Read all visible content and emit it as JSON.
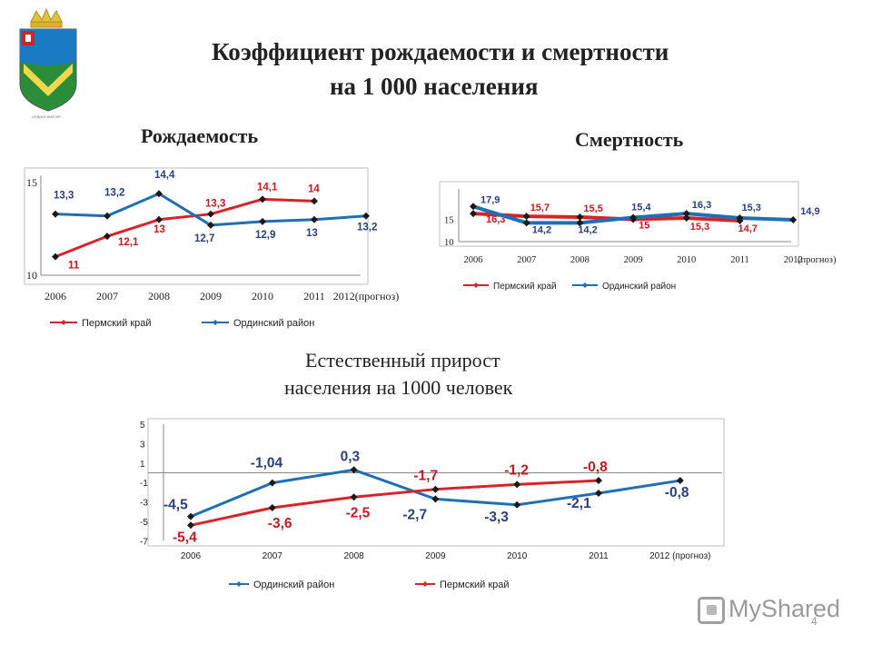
{
  "slide": {
    "title_line1": "Коэффициент рождаемости и смертности",
    "title_line2": "на 1 000 населения",
    "page_number": "4",
    "watermark": "MyShared"
  },
  "chart_data": [
    {
      "type": "line",
      "title": "Рождаемость",
      "categories": [
        "2006",
        "2007",
        "2008",
        "2009",
        "2010",
        "2011",
        "2012(прогноз)"
      ],
      "ylim": [
        10,
        15
      ],
      "yticks": [
        "10",
        "15"
      ],
      "legend": "bottom",
      "series": [
        {
          "name": "Пермский край",
          "color": "#d6252a",
          "values": [
            11,
            12.1,
            13,
            13.3,
            14.1,
            14,
            null
          ],
          "labels": [
            "11",
            "12,1",
            "13",
            "13,3",
            "14,1",
            "14",
            ""
          ]
        },
        {
          "name": "Ординский район",
          "color": "#1f6fb4",
          "values": [
            13.3,
            13.2,
            14.4,
            12.7,
            12.9,
            13,
            13.2
          ],
          "labels": [
            "13,3",
            "13,2",
            "14,4",
            "12,7",
            "12,9",
            "13",
            "13,2"
          ]
        }
      ]
    },
    {
      "type": "line",
      "title": "Смертность",
      "categories": [
        "2006",
        "2007",
        "2008",
        "2009",
        "2010",
        "2011",
        "2012"
      ],
      "xnote": "(прогноз)",
      "ylim": [
        10,
        18
      ],
      "yticks": [
        "10",
        "15"
      ],
      "legend": "bottom",
      "series": [
        {
          "name": "Пермский край",
          "color": "#d6252a",
          "values": [
            16.3,
            15.7,
            15.5,
            15,
            15.3,
            14.7,
            null
          ],
          "labels": [
            "16,3",
            "15,7",
            "15,5",
            "15",
            "15,3",
            "14,7",
            ""
          ]
        },
        {
          "name": "Ординский район",
          "color": "#1f6fb4",
          "values": [
            17.9,
            14.2,
            14.2,
            15.4,
            16.3,
            15.3,
            14.9
          ],
          "labels": [
            "17,9",
            "14,2",
            "14,2",
            "15,4",
            "16,3",
            "15,3",
            "14,9"
          ]
        }
      ]
    },
    {
      "type": "line",
      "title_line1": "Естественный прирост",
      "title_line2": "населения на 1000 человек",
      "categories": [
        "2006",
        "2007",
        "2008",
        "2009",
        "2010",
        "2011",
        "2012 (прогноз)"
      ],
      "ylim": [
        -7,
        5
      ],
      "yticks": [
        "-7",
        "-5",
        "-3",
        "-1",
        "1",
        "3",
        "5"
      ],
      "legend": "bottom",
      "series": [
        {
          "name": "Ординский район",
          "color": "#1f6fb4",
          "values": [
            -4.5,
            -1.04,
            0.3,
            -2.7,
            -3.3,
            -2.1,
            -0.8
          ],
          "labels": [
            "-4,5",
            "-1,04",
            "0,3",
            "-2,7",
            "-3,3",
            "-2,1",
            "-0,8"
          ]
        },
        {
          "name": "Пермский край",
          "color": "#d6252a",
          "values": [
            -5.4,
            -3.6,
            -2.5,
            -1.7,
            -1.2,
            -0.8,
            null
          ],
          "labels": [
            "-5,4",
            "-3,6",
            "-2,5",
            "-1,7",
            "-1,2",
            "-0,8",
            ""
          ]
        }
      ]
    }
  ]
}
